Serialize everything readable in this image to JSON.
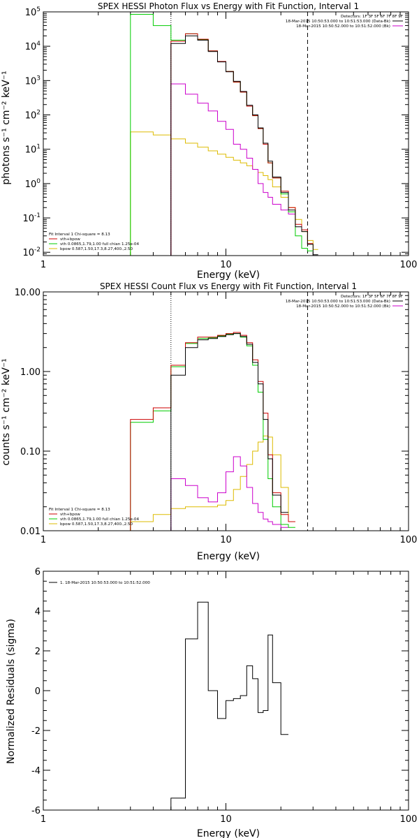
{
  "colors": {
    "data": "#000000",
    "total": "#cc0000",
    "vth": "#00cc00",
    "bpow": "#ddbb00",
    "bk": "#cc00cc"
  },
  "chart_data": [
    {
      "type": "line",
      "scale": "log-log",
      "title": "SPEX HESSI Photon Flux vs Energy with Fit Function, Interval 1",
      "xlabel": "Energy (keV)",
      "ylabel": "photons s⁻¹ cm⁻² keV⁻¹",
      "xlim": [
        1,
        100
      ],
      "ylim": [
        0.008,
        100000
      ],
      "xticks": [
        {
          "v": 1,
          "label": "1"
        },
        {
          "v": 10,
          "label": "10"
        },
        {
          "v": 100,
          "label": "100"
        }
      ],
      "yticks": [
        {
          "v": 0.01,
          "base": "10",
          "exp": "-2"
        },
        {
          "v": 0.1,
          "base": "10",
          "exp": "-1"
        },
        {
          "v": 1,
          "base": "10",
          "exp": "0"
        },
        {
          "v": 10,
          "base": "10",
          "exp": "1"
        },
        {
          "v": 100,
          "base": "10",
          "exp": "2"
        },
        {
          "v": 1000,
          "base": "10",
          "exp": "3"
        },
        {
          "v": 10000,
          "base": "10",
          "exp": "4"
        },
        {
          "v": 100000,
          "base": "10",
          "exp": "5"
        }
      ],
      "vlines": [
        {
          "x": 5,
          "style": "dotted"
        },
        {
          "x": 28,
          "style": "dashed"
        }
      ],
      "legend_right": {
        "placement": "top-right",
        "header": "Detectors: 1F 3F 5F 6F 7F 8F 9F",
        "entries": [
          {
            "text": "18-Mar-2015 10:50:53.000 to 10:51:53.000 (Data-Bk)",
            "color": "#000000"
          },
          {
            "text": "18-Mar-2015 10:50:52.000 to 10:51:52.000 (Bk)",
            "color": "#cc00cc"
          }
        ]
      },
      "legend_left": {
        "placement": "bottom-left",
        "header": "Fit Interval 1    Chi-square = 8.13",
        "entries": [
          {
            "text": "vth+bpow",
            "color": "#cc0000"
          },
          {
            "text": "vth 0.0865,1.79,1.00  full chian 1.25e-04",
            "color": "#00cc00"
          },
          {
            "text": "bpow 0.587,1.50,17.3,8.27,400.,2.50",
            "color": "#ddbb00"
          }
        ]
      },
      "edges": [
        3,
        4,
        5,
        6,
        7,
        8,
        9,
        10,
        11,
        12,
        13,
        14,
        15,
        16,
        17,
        18,
        20,
        22,
        24,
        26,
        28,
        30,
        32,
        35
      ],
      "series": [
        {
          "name": "Data-Bk",
          "role": "data",
          "start_edge": 5,
          "values": [
            12000,
            20000,
            15000,
            7000,
            3500,
            1800,
            950,
            480,
            190,
            100,
            42,
            15,
            4.5,
            1.55,
            0.55,
            0.17,
            0.055,
            0.04,
            0.017,
            0.0085
          ]
        },
        {
          "name": "vth+bpow",
          "role": "total",
          "start_edge": 5,
          "values": [
            14000,
            23000,
            16000,
            7300,
            3600,
            1850,
            900,
            460,
            180,
            95,
            40,
            14,
            4.0,
            1.45,
            0.6,
            0.2,
            0.065,
            0.045,
            0.018
          ]
        },
        {
          "name": "vth",
          "role": "vth",
          "start_edge": 3,
          "values": [
            85000,
            40000,
            15000,
            23000,
            15500,
            7300,
            3600,
            1850,
            900,
            460,
            180,
            95,
            40,
            14,
            4.0,
            1.45,
            0.5,
            0.15,
            0.03,
            0.013,
            0.011
          ]
        },
        {
          "name": "bpow",
          "role": "bpow",
          "start_edge": 3,
          "values": [
            32,
            26,
            20,
            15,
            11.5,
            9,
            7.2,
            5.8,
            4.8,
            4.0,
            3.3,
            2.6,
            2.1,
            1.7,
            1.3,
            0.8,
            0.4,
            0.2,
            0.09,
            0.04,
            0.022,
            0.012
          ]
        },
        {
          "name": "Bk",
          "role": "bk",
          "start_edge": 5,
          "values": [
            800,
            400,
            220,
            130,
            65,
            38,
            14,
            10,
            5.5,
            2.6,
            1.0,
            0.55,
            0.4,
            0.25,
            0.17,
            0.13
          ]
        }
      ]
    },
    {
      "type": "line",
      "scale": "log-log",
      "title": "SPEX HESSI Count Flux vs Energy with Fit Function, Interval 1",
      "xlabel": "Energy (keV)",
      "ylabel": "counts s⁻¹ cm⁻² keV⁻¹",
      "xlim": [
        1,
        100
      ],
      "ylim": [
        0.01,
        10
      ],
      "xticks": [
        {
          "v": 1,
          "label": "1"
        },
        {
          "v": 10,
          "label": "10"
        },
        {
          "v": 100,
          "label": "100"
        }
      ],
      "yticks": [
        {
          "v": 0.01,
          "label": "0.01"
        },
        {
          "v": 0.1,
          "label": "0.10"
        },
        {
          "v": 1,
          "label": "1.00"
        },
        {
          "v": 10,
          "label": "10.00"
        }
      ],
      "vlines": [
        {
          "x": 5,
          "style": "dotted"
        },
        {
          "x": 28,
          "style": "dashed"
        }
      ],
      "legend_right": {
        "placement": "top-right",
        "header": "Detectors: 1F 3F 5F 6F 7F 8F 9F",
        "entries": [
          {
            "text": "18-Mar-2015 10:50:53.000 to 10:51:53.000 (Data-Bk)",
            "color": "#000000"
          },
          {
            "text": "18-Mar-2015 10:50:52.000 to 10:51:52.000 (Bk)",
            "color": "#cc00cc"
          }
        ]
      },
      "legend_left": {
        "placement": "bottom-left",
        "header": "Fit Interval 1    Chi-square = 8.13",
        "entries": [
          {
            "text": "vth+bpow",
            "color": "#cc0000"
          },
          {
            "text": "vth 0.0865,1.79,1.00  full chian 1.25e-04",
            "color": "#00cc00"
          },
          {
            "text": "bpow 0.587,1.50,17.3,8.27,400.,2.50",
            "color": "#ddbb00"
          }
        ]
      },
      "edges": [
        3,
        4,
        5,
        6,
        7,
        8,
        9,
        10,
        11,
        12,
        13,
        14,
        15,
        16,
        17,
        18,
        20,
        22,
        24,
        26,
        28
      ],
      "series": [
        {
          "name": "Data-Bk",
          "role": "data",
          "start_edge": 5,
          "values": [
            0.9,
            2.0,
            2.5,
            2.6,
            2.75,
            2.9,
            3.0,
            2.75,
            2.2,
            1.3,
            0.7,
            0.25,
            0.08,
            0.028,
            0.017
          ]
        },
        {
          "name": "vth+bpow",
          "role": "total",
          "start_edge": 3,
          "values": [
            0.25,
            0.35,
            1.2,
            2.3,
            2.7,
            2.7,
            2.85,
            3.0,
            3.1,
            2.85,
            2.3,
            1.4,
            0.75,
            0.3,
            0.09,
            0.03,
            0.016,
            0.013
          ]
        },
        {
          "name": "vth",
          "role": "vth",
          "start_edge": 3,
          "values": [
            0.23,
            0.32,
            1.15,
            2.25,
            2.6,
            2.65,
            2.8,
            2.95,
            3.0,
            2.7,
            2.1,
            1.2,
            0.55,
            0.14,
            0.045,
            0.02,
            0.012,
            0.011
          ]
        },
        {
          "name": "bpow",
          "role": "bpow",
          "start_edge": 3,
          "values": [
            0.013,
            0.016,
            0.019,
            0.02,
            0.02,
            0.02,
            0.021,
            0.024,
            0.033,
            0.048,
            0.068,
            0.1,
            0.13,
            0.155,
            0.15,
            0.09,
            0.035,
            0.013
          ]
        },
        {
          "name": "Bk",
          "role": "bk",
          "start_edge": 5,
          "values": [
            0.045,
            0.037,
            0.026,
            0.023,
            0.03,
            0.055,
            0.085,
            0.065,
            0.035,
            0.022,
            0.017,
            0.014,
            0.013,
            0.012,
            0.011
          ]
        }
      ]
    },
    {
      "type": "line",
      "scale": "log-linear",
      "title": "",
      "xlabel": "Energy (keV)",
      "ylabel": "Normalized Residuals (sigma)",
      "xlim": [
        1,
        100
      ],
      "ylim": [
        -6,
        6
      ],
      "xticks": [
        {
          "v": 1,
          "label": "1"
        },
        {
          "v": 10,
          "label": "10"
        },
        {
          "v": 100,
          "label": "100"
        }
      ],
      "yticks": [
        {
          "v": -6,
          "label": "-6"
        },
        {
          "v": -4,
          "label": "-4"
        },
        {
          "v": -2,
          "label": "-2"
        },
        {
          "v": 0,
          "label": "0"
        },
        {
          "v": 2,
          "label": "2"
        },
        {
          "v": 4,
          "label": "4"
        },
        {
          "v": 6,
          "label": "6"
        }
      ],
      "vlines": [],
      "legend_left": {
        "placement": "top-left",
        "header": "",
        "entries": [
          {
            "text": "1. 18-Mar-2015 10:50:53.000 to 10:51:52.000",
            "color": "#000000"
          }
        ]
      },
      "edges": [
        5,
        6,
        7,
        8,
        9,
        10,
        11,
        12,
        13,
        14,
        15,
        16,
        17,
        18,
        20,
        22,
        24,
        26,
        28
      ],
      "series": [
        {
          "name": "Residuals",
          "role": "data",
          "start_edge": 5,
          "values": [
            -5.4,
            2.6,
            4.45,
            0.0,
            -1.4,
            -0.5,
            -0.4,
            -0.25,
            1.25,
            0.6,
            -1.1,
            -1.0,
            2.8,
            0.4,
            -2.2
          ]
        }
      ]
    }
  ]
}
